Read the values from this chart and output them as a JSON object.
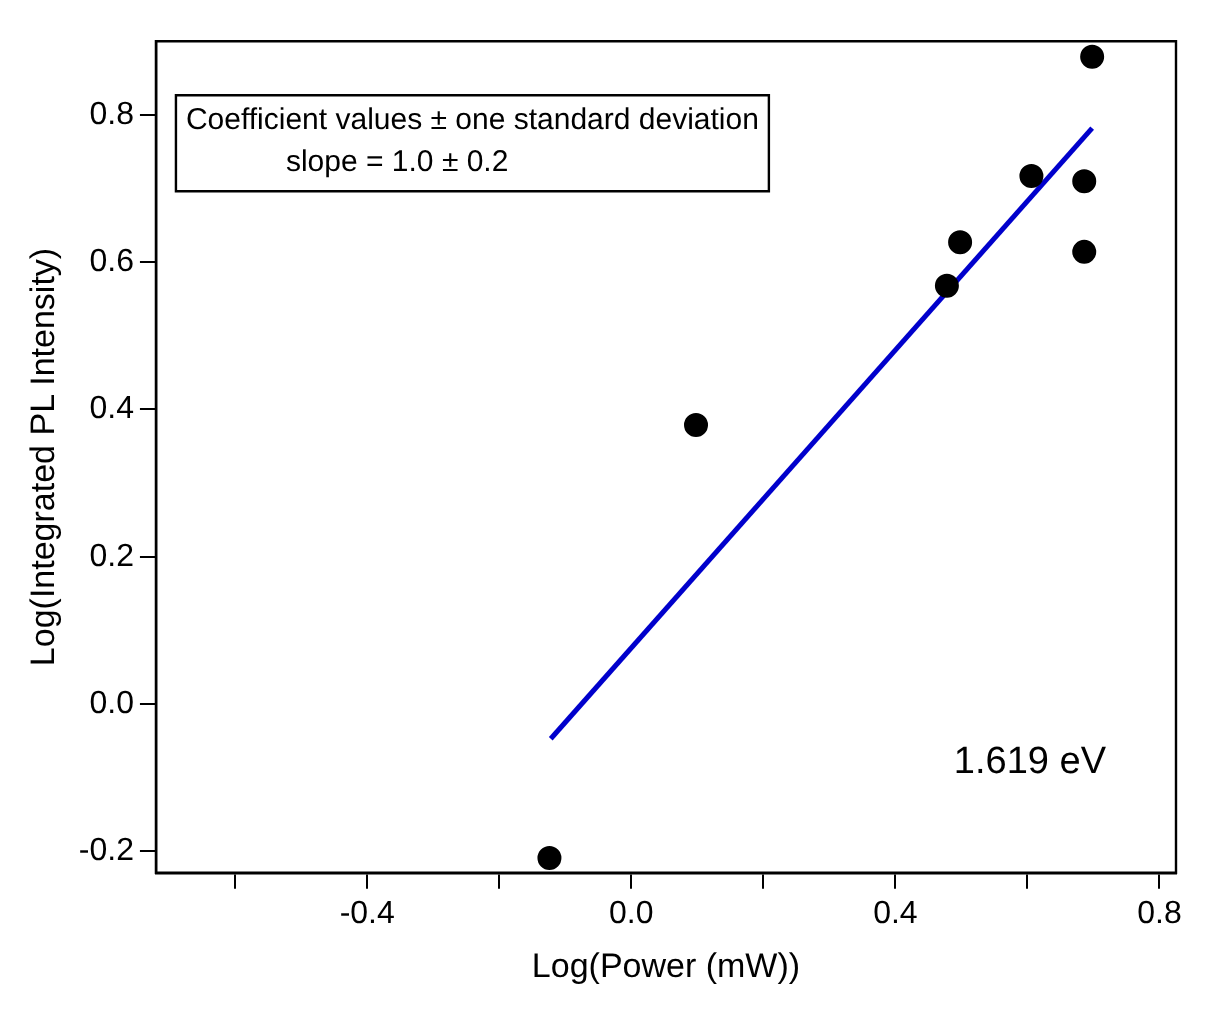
{
  "chart_data": {
    "type": "scatter",
    "xlabel": "Log(Power (mW))",
    "ylabel": "Log(Integrated PL Intensity)",
    "xlim": [
      -0.72,
      0.825
    ],
    "ylim": [
      -0.229,
      0.9
    ],
    "xticks": [
      {
        "value": -0.6,
        "label": null
      },
      -0.4,
      {
        "value": -0.2,
        "label": null
      },
      {
        "value": 0,
        "label": "0.0"
      },
      {
        "value": 0.2,
        "label": null
      },
      0.4,
      {
        "value": 0.6,
        "label": null
      },
      0.8
    ],
    "yticks": [
      -0.2,
      {
        "value": 0,
        "label": "0.0"
      },
      0.2,
      0.4,
      0.6,
      0.8
    ],
    "annotations": [
      "Coefficient values ± one standard deviation",
      "slope = 1.0 ± 0.2",
      "1.619 eV"
    ],
    "series": [
      {
        "type": "scatter",
        "marker": "circle",
        "color": "#000000",
        "x": [
          -0.124,
          0.098,
          0.478,
          0.498,
          0.606,
          0.686,
          0.686,
          0.698
        ],
        "values": [
          -0.209,
          0.379,
          0.568,
          0.627,
          0.717,
          0.71,
          0.614,
          0.879
        ]
      },
      {
        "type": "line",
        "color": "#0000cc",
        "x": [
          -0.122,
          0.698
        ],
        "values": [
          -0.047,
          0.782
        ]
      }
    ]
  }
}
